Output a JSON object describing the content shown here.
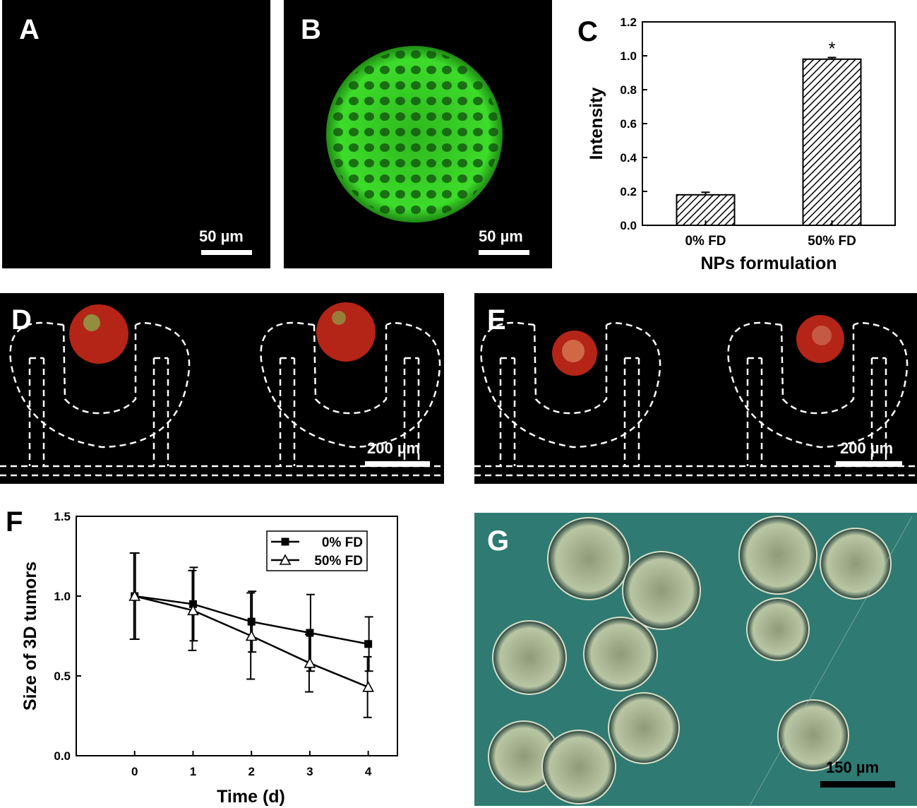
{
  "panels": {
    "a": {
      "label": "A",
      "scale_bar": "50 µm"
    },
    "b": {
      "label": "B",
      "scale_bar": "50 µm"
    },
    "c": {
      "label": "C"
    },
    "d": {
      "label": "D",
      "scale_bar": "200 µm"
    },
    "e": {
      "label": "E",
      "scale_bar": "200 µm"
    },
    "f": {
      "label": "F"
    },
    "g": {
      "label": "G",
      "scale_bar": "150 µm"
    }
  },
  "chart_data": [
    {
      "panel": "C",
      "type": "bar",
      "categories": [
        "0% FD",
        "50% FD"
      ],
      "values": [
        0.18,
        0.98
      ],
      "errors": [
        0.015,
        0.01
      ],
      "annotations": [
        "",
        "*"
      ],
      "xlabel": "NPs formulation",
      "ylabel": "Intensity",
      "ylim": [
        0,
        1.2
      ],
      "yticks": [
        "0.0",
        "0.2",
        "0.4",
        "0.6",
        "0.8",
        "1.0",
        "1.2"
      ],
      "bar_fill": "hatched"
    },
    {
      "panel": "F",
      "type": "line",
      "x": [
        0,
        1,
        2,
        3,
        4
      ],
      "xticks": [
        "0",
        "1",
        "2",
        "3",
        "4"
      ],
      "series": [
        {
          "name": "0% FD",
          "marker": "filled-square",
          "values": [
            1.0,
            0.95,
            0.84,
            0.77,
            0.7
          ],
          "errors": [
            0.27,
            0.23,
            0.19,
            0.24,
            0.17
          ]
        },
        {
          "name": "50% FD",
          "marker": "open-triangle",
          "values": [
            1.0,
            0.91,
            0.75,
            0.58,
            0.43
          ],
          "errors": [
            0.27,
            0.25,
            0.27,
            0.18,
            0.19
          ]
        }
      ],
      "xlabel": "Time (d)",
      "ylabel": "Size of 3D tumors",
      "xlim": [
        -1,
        4.5
      ],
      "ylim": [
        0,
        1.5
      ],
      "yticks": [
        "0.0",
        "0.5",
        "1.0",
        "1.5"
      ],
      "legend_position": "top-right"
    }
  ],
  "colors": {
    "fluorescence_green": "#3ddc2a",
    "tumor_red": "#c8281a",
    "phase_background": "#2f7a72"
  }
}
